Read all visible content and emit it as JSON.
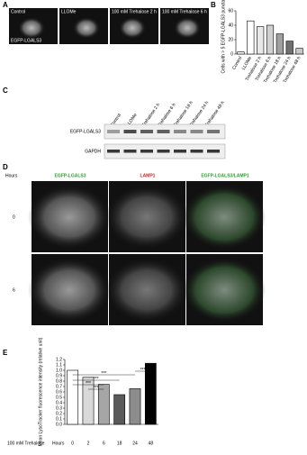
{
  "panel_labels": [
    "A",
    "B",
    "C",
    "D",
    "E"
  ],
  "panel_a": {
    "images": [
      "Control",
      "LLOMe",
      "100 mM Trehalose 2 h",
      "100 mM Trehalose 6 h"
    ],
    "channel": "EGFP-LGALS3"
  },
  "panel_c": {
    "lanes": [
      "Control",
      "LLOMe",
      "Trehalose 2 h",
      "Trehalose 6 h",
      "Trehalose 18 h",
      "Trehalose 24 h",
      "Trehalose 48 h"
    ],
    "rows": [
      "EGFP-LGALS3",
      "GAPDH"
    ]
  },
  "panel_d": {
    "row_header": "Hours",
    "columns": [
      "EGFP-LGALS3",
      "LAMP1",
      "EGFP-LGALS3/LAMP1"
    ],
    "rows": [
      "0",
      "6"
    ]
  },
  "chart_data": [
    {
      "type": "bar",
      "y_label": "Cells with > 5 EGFP-LGALS3 puncta (%)",
      "categories": [
        "Control",
        "LLOMe",
        "Trehalose 2 h",
        "Trehalose 6 h",
        "Trehalose 18 h",
        "Trehalose 24 h",
        "Trehalose 48 h"
      ],
      "values": [
        3,
        46,
        38,
        40,
        28,
        18,
        8
      ],
      "colors": [
        "#ffffff",
        "#ffffff",
        "#e8e8e8",
        "#d0d0d0",
        "#a0a0a0",
        "#707070",
        "#c8c8c8"
      ],
      "ylim": [
        0,
        60
      ],
      "yticks": [
        0,
        20,
        40,
        60
      ]
    },
    {
      "type": "bar",
      "y_label": "Mean LysoTracker fluorescence intensity (relative unit)",
      "x_label": "100 mM Trehalose",
      "x_unit": "Hours",
      "categories": [
        "0",
        "2",
        "6",
        "18",
        "24",
        "48"
      ],
      "values": [
        1.0,
        0.87,
        0.74,
        0.55,
        0.66,
        1.13
      ],
      "colors": [
        "#ffffff",
        "#d9d9d9",
        "#a6a6a6",
        "#5a5a5a",
        "#8c8c8c",
        "#000000"
      ],
      "ylim": [
        0,
        1.2
      ],
      "yticks": [
        {
          "value": 0,
          "label": "0.0"
        },
        {
          "value": 0.1,
          "label": "0.1"
        },
        {
          "value": 0.2,
          "label": "0.2"
        },
        {
          "value": 0.3,
          "label": "0.3"
        },
        {
          "value": 0.4,
          "label": "0.4"
        },
        {
          "value": 0.5,
          "label": "0.5"
        },
        {
          "value": 0.6,
          "label": "0.6"
        },
        {
          "value": 0.7,
          "label": "0.7"
        },
        {
          "value": 0.8,
          "label": "0.8"
        },
        {
          "value": 0.9,
          "label": "0.9"
        },
        {
          "value": 1.0,
          "label": "1.0"
        },
        {
          "value": 1.1,
          "label": "1.1"
        },
        {
          "value": 1.2,
          "label": "1.2"
        }
      ],
      "annotations": [
        "***",
        "***",
        "***",
        "***",
        "***"
      ]
    }
  ]
}
